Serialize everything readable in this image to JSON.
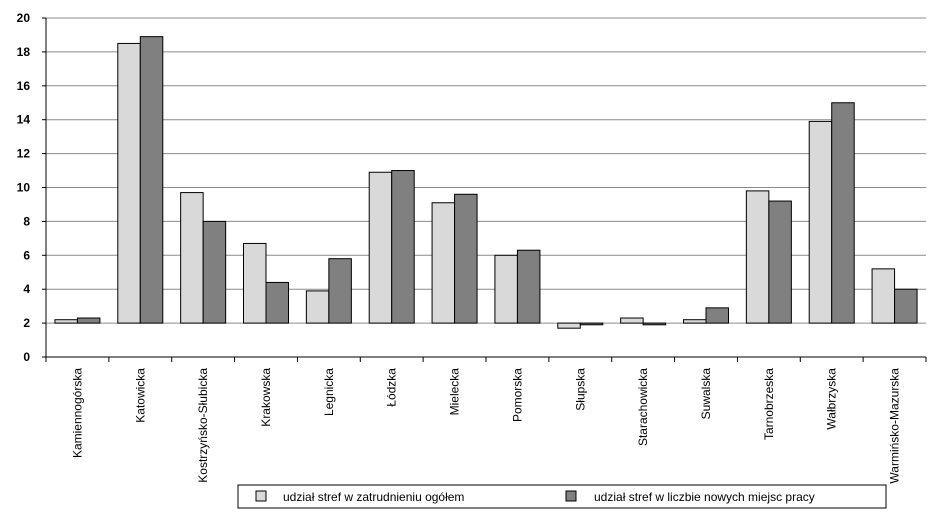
{
  "chart_data": {
    "type": "bar",
    "title": "",
    "xlabel": "",
    "ylabel": "",
    "ylim": [
      0,
      20
    ],
    "yticks": [
      0,
      2,
      4,
      6,
      8,
      10,
      12,
      14,
      16,
      18,
      20
    ],
    "baseline": 2,
    "grid": true,
    "legend_position": "bottom",
    "categories": [
      "Kamiennogórska",
      "Katowicka",
      "Kostrzyńsko-Słubicka",
      "Krakowska",
      "Legnicka",
      "Łódzka",
      "Mielecka",
      "Pomorska",
      "Słupska",
      "Starachowicka",
      "Suwalska",
      "Tarnobrzeska",
      "Wałbrzyska",
      "Warmińsko-Mazurska"
    ],
    "series": [
      {
        "name": "udział stref w zatrudnieniu ogółem",
        "color": "#d9d9d9",
        "values": [
          2.2,
          18.5,
          9.7,
          6.7,
          3.9,
          10.9,
          9.1,
          6.0,
          1.7,
          2.3,
          2.2,
          9.8,
          13.9,
          5.2
        ]
      },
      {
        "name": "udział stref w liczbie nowych miejsc pracy",
        "color": "#808080",
        "values": [
          2.3,
          18.9,
          8.0,
          4.4,
          5.8,
          11.0,
          9.6,
          6.3,
          1.9,
          1.9,
          2.9,
          9.2,
          15.0,
          4.0
        ]
      }
    ]
  }
}
